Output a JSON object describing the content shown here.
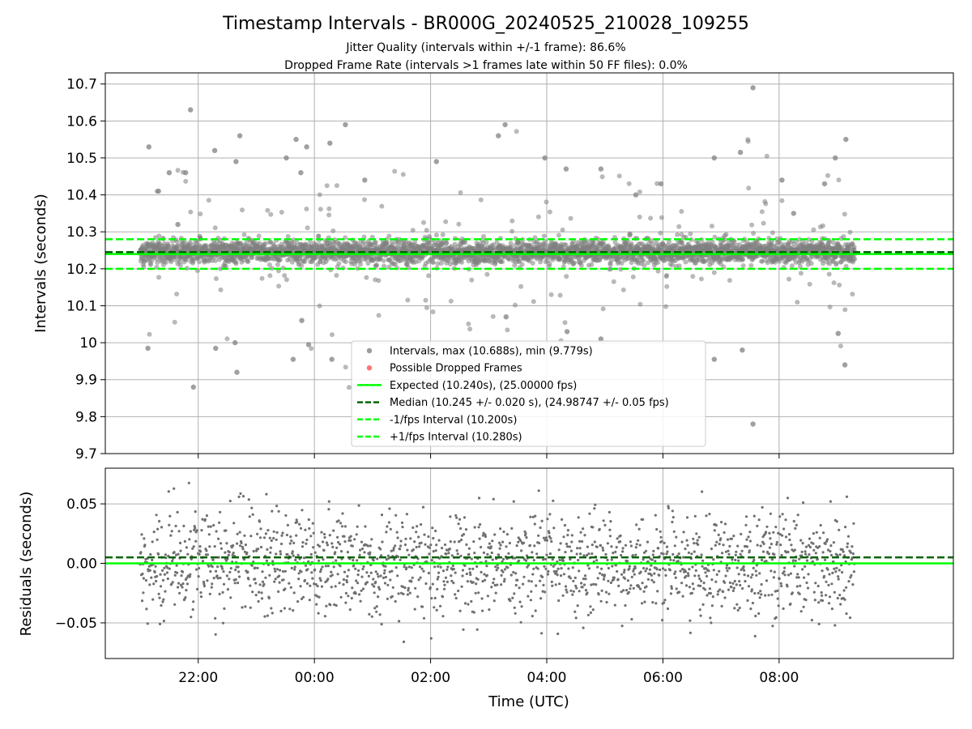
{
  "title": "Timestamp Intervals - BR000G_20240525_210028_109255",
  "subtitle_1": "Jitter Quality (intervals within +/-1 frame): 86.6%",
  "subtitle_2": "Dropped Frame Rate (intervals >1 frames late within 50 FF files): 0.0%",
  "x_axis_label": "Time (UTC)",
  "colors": {
    "points": "#808080",
    "dropped": "#ff4444",
    "expected": "#00ff00",
    "median": "#006400",
    "grid": "#b0b0b0"
  },
  "chart_data": [
    {
      "type": "scatter",
      "panel": "top",
      "ylabel": "Intervals (seconds)",
      "ylim": [
        9.7,
        10.73
      ],
      "xlim_hours": [
        20.4,
        35.0
      ],
      "yticks": [
        9.7,
        9.8,
        9.9,
        10.0,
        10.1,
        10.2,
        10.3,
        10.4,
        10.5,
        10.6,
        10.7
      ],
      "x_range_hours": [
        21.0,
        33.3
      ],
      "cluster_median": 10.245,
      "cluster_spread": 0.02,
      "outliers": [
        {
          "t": "21:09",
          "y": 10.53
        },
        {
          "t": "21:08",
          "y": 9.985
        },
        {
          "t": "21:19",
          "y": 10.41
        },
        {
          "t": "21:30",
          "y": 10.46
        },
        {
          "t": "21:39",
          "y": 10.32
        },
        {
          "t": "21:52",
          "y": 10.63
        },
        {
          "t": "21:55",
          "y": 9.88
        },
        {
          "t": "21:47",
          "y": 10.46
        },
        {
          "t": "22:17",
          "y": 10.52
        },
        {
          "t": "22:18",
          "y": 9.985
        },
        {
          "t": "22:39",
          "y": 10.49
        },
        {
          "t": "22:43",
          "y": 10.56
        },
        {
          "t": "22:40",
          "y": 9.92
        },
        {
          "t": "22:38",
          "y": 10.0
        },
        {
          "t": "23:31",
          "y": 10.5
        },
        {
          "t": "23:41",
          "y": 10.55
        },
        {
          "t": "23:52",
          "y": 10.53
        },
        {
          "t": "23:46",
          "y": 10.46
        },
        {
          "t": "23:38",
          "y": 9.955
        },
        {
          "t": "23:47",
          "y": 10.06
        },
        {
          "t": "23:54",
          "y": 9.995
        },
        {
          "t": "00:16",
          "y": 10.54
        },
        {
          "t": "00:32",
          "y": 10.59
        },
        {
          "t": "00:18",
          "y": 9.955
        },
        {
          "t": "00:52",
          "y": 10.44
        },
        {
          "t": "02:06",
          "y": 10.49
        },
        {
          "t": "03:10",
          "y": 10.56
        },
        {
          "t": "03:17",
          "y": 10.59
        },
        {
          "t": "03:18",
          "y": 10.07
        },
        {
          "t": "03:58",
          "y": 10.5
        },
        {
          "t": "04:20",
          "y": 10.47
        },
        {
          "t": "04:21",
          "y": 10.03
        },
        {
          "t": "04:56",
          "y": 10.47
        },
        {
          "t": "04:56",
          "y": 10.01
        },
        {
          "t": "05:32",
          "y": 10.4
        },
        {
          "t": "05:58",
          "y": 10.43
        },
        {
          "t": "06:53",
          "y": 10.5
        },
        {
          "t": "06:53",
          "y": 9.955
        },
        {
          "t": "07:20",
          "y": 10.515
        },
        {
          "t": "07:22",
          "y": 9.98
        },
        {
          "t": "07:33",
          "y": 10.69
        },
        {
          "t": "07:33",
          "y": 9.78
        },
        {
          "t": "08:03",
          "y": 10.44
        },
        {
          "t": "08:15",
          "y": 10.35
        },
        {
          "t": "08:47",
          "y": 10.43
        },
        {
          "t": "08:58",
          "y": 10.5
        },
        {
          "t": "09:09",
          "y": 10.55
        },
        {
          "t": "09:08",
          "y": 9.94
        },
        {
          "t": "09:01",
          "y": 10.025
        }
      ],
      "legend": [
        {
          "label": "Intervals, max (10.688s), min (9.779s)",
          "marker": "point",
          "color": "#909090"
        },
        {
          "label": "Possible Dropped Frames",
          "marker": "point",
          "color": "#ff6666"
        },
        {
          "label": "Expected (10.240s), (25.00000 fps)",
          "marker": "line",
          "color": "#00ff00",
          "dash": "solid"
        },
        {
          "label": "Median (10.245 +/- 0.020 s), (24.98747 +/- 0.05 fps)",
          "marker": "line",
          "color": "#006400",
          "dash": "dashed"
        },
        {
          "label": "-1/fps Interval (10.200s)",
          "marker": "line",
          "color": "#00ff00",
          "dash": "dashed"
        },
        {
          "label": "+1/fps Interval (10.280s)",
          "marker": "line",
          "color": "#00ff00",
          "dash": "dashed"
        }
      ],
      "hlines": [
        {
          "y": 10.24,
          "color": "#00ff00",
          "dash": "solid"
        },
        {
          "y": 10.245,
          "color": "#006400",
          "dash": "dashed"
        },
        {
          "y": 10.2,
          "color": "#00ff00",
          "dash": "dashed"
        },
        {
          "y": 10.28,
          "color": "#00ff00",
          "dash": "dashed"
        }
      ]
    },
    {
      "type": "scatter",
      "panel": "bottom",
      "ylabel": "Residuals (seconds)",
      "ylim": [
        -0.08,
        0.08
      ],
      "xlim_hours": [
        20.4,
        35.0
      ],
      "yticks": [
        0.05,
        0.0,
        -0.05
      ],
      "ytick_labels": [
        "0.05",
        "0.00",
        "−0.05"
      ],
      "xticks_hours": [
        22,
        24,
        26,
        28,
        30,
        32
      ],
      "xtick_labels": [
        "22:00",
        "00:00",
        "02:00",
        "04:00",
        "06:00",
        "08:00"
      ],
      "x_range_hours": [
        21.0,
        33.3
      ],
      "residual_spread": 0.02,
      "hlines": [
        {
          "y": 0.0,
          "color": "#00ff00",
          "dash": "solid"
        },
        {
          "y": 0.005,
          "color": "#006400",
          "dash": "dashed"
        }
      ]
    }
  ]
}
